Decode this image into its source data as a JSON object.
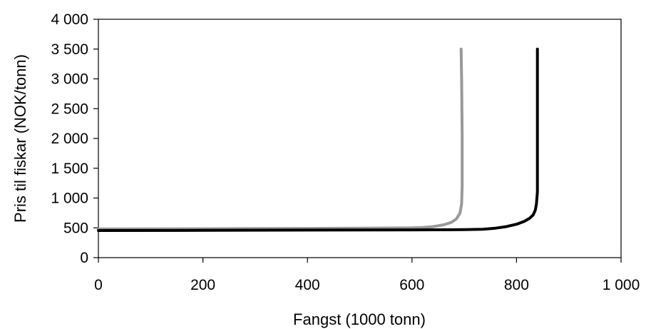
{
  "chart_data": {
    "type": "line",
    "title": "",
    "xlabel": "Fangst (1000 tonn)",
    "ylabel": "Pris til fiskar (NOK/tonn)",
    "xlim": [
      0,
      1000
    ],
    "ylim": [
      0,
      4000
    ],
    "x_ticks": [
      0,
      200,
      400,
      600,
      800,
      1000
    ],
    "x_tick_labels": [
      "0",
      "200",
      "400",
      "600",
      "800",
      "1 000"
    ],
    "y_ticks": [
      0,
      500,
      1000,
      1500,
      2000,
      2500,
      3000,
      3500,
      4000
    ],
    "y_tick_labels": [
      "0",
      "500",
      "1 000",
      "1 500",
      "2 000",
      "2 500",
      "3 000",
      "3 500",
      "4 000"
    ],
    "grid": false,
    "legend": "none",
    "series": [
      {
        "color": "#999999",
        "points": [
          [
            0,
            480
          ],
          [
            100,
            482
          ],
          [
            200,
            484
          ],
          [
            300,
            487
          ],
          [
            400,
            490
          ],
          [
            500,
            494
          ],
          [
            600,
            500
          ],
          [
            620,
            505
          ],
          [
            640,
            520
          ],
          [
            660,
            550
          ],
          [
            675,
            590
          ],
          [
            685,
            650
          ],
          [
            692,
            750
          ],
          [
            695,
            900
          ],
          [
            696,
            1200
          ],
          [
            696,
            2000
          ],
          [
            695,
            3000
          ],
          [
            694,
            3500
          ]
        ]
      },
      {
        "color": "#000000",
        "points": [
          [
            0,
            455
          ],
          [
            200,
            458
          ],
          [
            400,
            462
          ],
          [
            600,
            466
          ],
          [
            700,
            470
          ],
          [
            735,
            475
          ],
          [
            760,
            495
          ],
          [
            780,
            520
          ],
          [
            800,
            560
          ],
          [
            815,
            610
          ],
          [
            825,
            660
          ],
          [
            832,
            720
          ],
          [
            836,
            800
          ],
          [
            838,
            900
          ],
          [
            840,
            1100
          ],
          [
            840,
            1500
          ],
          [
            840,
            2500
          ],
          [
            840,
            3500
          ]
        ]
      }
    ]
  }
}
